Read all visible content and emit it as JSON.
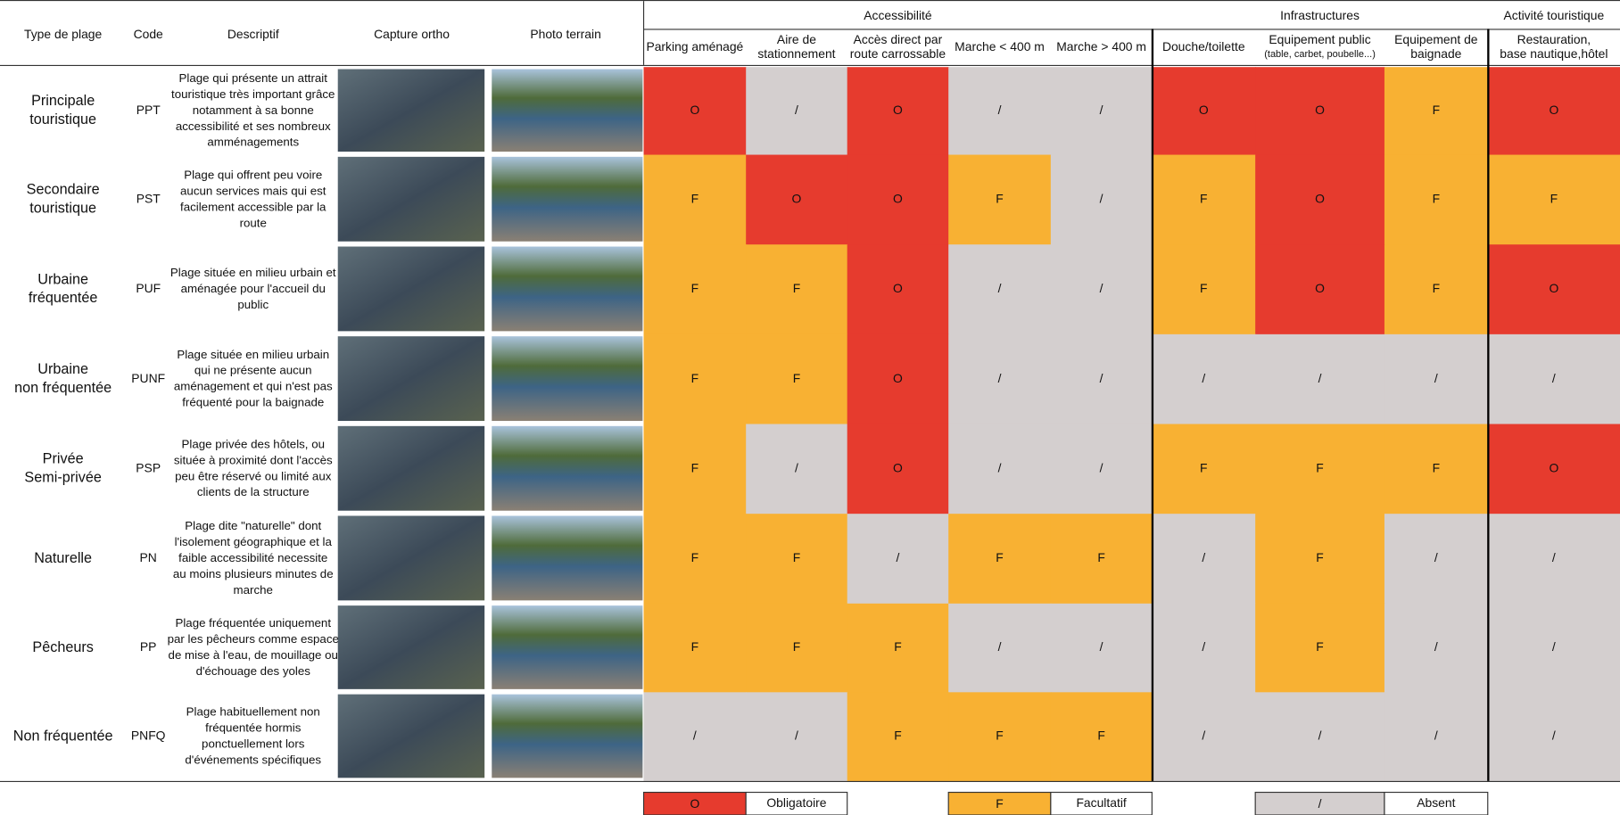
{
  "header": {
    "columns": [
      "Type de plage",
      "Code",
      "Descriptif",
      "Capture ortho",
      "Photo terrain"
    ],
    "groups": [
      "Accessibilité",
      "Infrastructures",
      "Activité touristique"
    ],
    "subcolumns": [
      [
        "Parking aménagé"
      ],
      [
        "Aire de",
        "stationnement"
      ],
      [
        "Accès direct par",
        "route carrossable"
      ],
      [
        "Marche < 400 m"
      ],
      [
        "Marche > 400 m"
      ],
      [
        "Douche/toilette"
      ],
      [
        "Equipement public",
        "(table, carbet, poubelle...)"
      ],
      [
        "Equipement de",
        "baignade"
      ],
      [
        "Restauration,",
        "base nautique,hôtel"
      ]
    ]
  },
  "rows": [
    {
      "type": [
        "Principale",
        "touristique"
      ],
      "code": "PPT",
      "description": [
        "Plage qui présente un attrait",
        "touristique très important grâce",
        "notamment à sa bonne",
        "accessibilité et ses nombreux",
        "amménagements"
      ],
      "cells": [
        "O",
        "/",
        "O",
        "/",
        "/",
        "O",
        "O",
        "F",
        "O"
      ]
    },
    {
      "type": [
        "Secondaire",
        "touristique"
      ],
      "code": "PST",
      "description": [
        "Plage qui offrent peu voire",
        "aucun services mais qui est",
        "facilement accessible par la",
        "route"
      ],
      "cells": [
        "F",
        "O",
        "O",
        "F",
        "/",
        "F",
        "O",
        "F",
        "F"
      ]
    },
    {
      "type": [
        "Urbaine",
        "fréquentée"
      ],
      "code": "PUF",
      "description": [
        "Plage située en milieu urbain et",
        "aménagée pour l'accueil du",
        "public"
      ],
      "cells": [
        "F",
        "F",
        "O",
        "/",
        "/",
        "F",
        "O",
        "F",
        "O"
      ]
    },
    {
      "type": [
        "Urbaine",
        "non fréquentée"
      ],
      "code": "PUNF",
      "description": [
        "Plage située en milieu urbain",
        "qui ne présente aucun",
        "aménagement et qui n'est pas",
        "fréquenté pour la baignade"
      ],
      "cells": [
        "F",
        "F",
        "O",
        "/",
        "/",
        "/",
        "/",
        "/",
        "/"
      ]
    },
    {
      "type": [
        "Privée",
        "Semi-privée"
      ],
      "code": "PSP",
      "description": [
        "Plage privée des hôtels, ou",
        "située à proximité dont l'accès",
        "peu être réservé ou limité aux",
        "clients de la structure"
      ],
      "cells": [
        "F",
        "/",
        "O",
        "/",
        "/",
        "F",
        "F",
        "F",
        "O"
      ]
    },
    {
      "type": [
        "Naturelle"
      ],
      "code": "PN",
      "description": [
        "Plage dite \"naturelle\" dont",
        "l'isolement géographique et la",
        "faible accessibilité necessite",
        "au moins plusieurs minutes de",
        "marche"
      ],
      "cells": [
        "F",
        "F",
        "/",
        "F",
        "F",
        "/",
        "F",
        "/",
        "/"
      ]
    },
    {
      "type": [
        "Pêcheurs"
      ],
      "code": "PP",
      "description": [
        "Plage fréquentée uniquement",
        "par les pêcheurs comme espace",
        "de mise à l'eau, de mouillage ou",
        "d'échouage des yoles"
      ],
      "cells": [
        "F",
        "F",
        "F",
        "/",
        "/",
        "/",
        "F",
        "/",
        "/"
      ]
    },
    {
      "type": [
        "Non fréquentée"
      ],
      "code": "PNFQ",
      "description": [
        "Plage habituellement non",
        "fréquentée hormis",
        "ponctuellement lors",
        "d'événements spécifiques"
      ],
      "cells": [
        "/",
        "/",
        "F",
        "F",
        "F",
        "/",
        "/",
        "/",
        "/"
      ]
    }
  ],
  "legend": [
    {
      "symbol": "O",
      "label": "Obligatoire",
      "color": "#e63b2e"
    },
    {
      "symbol": "F",
      "label": "Facultatif",
      "color": "#f8b133"
    },
    {
      "symbol": "/",
      "label": "Absent",
      "color": "#d4cfcf"
    }
  ]
}
